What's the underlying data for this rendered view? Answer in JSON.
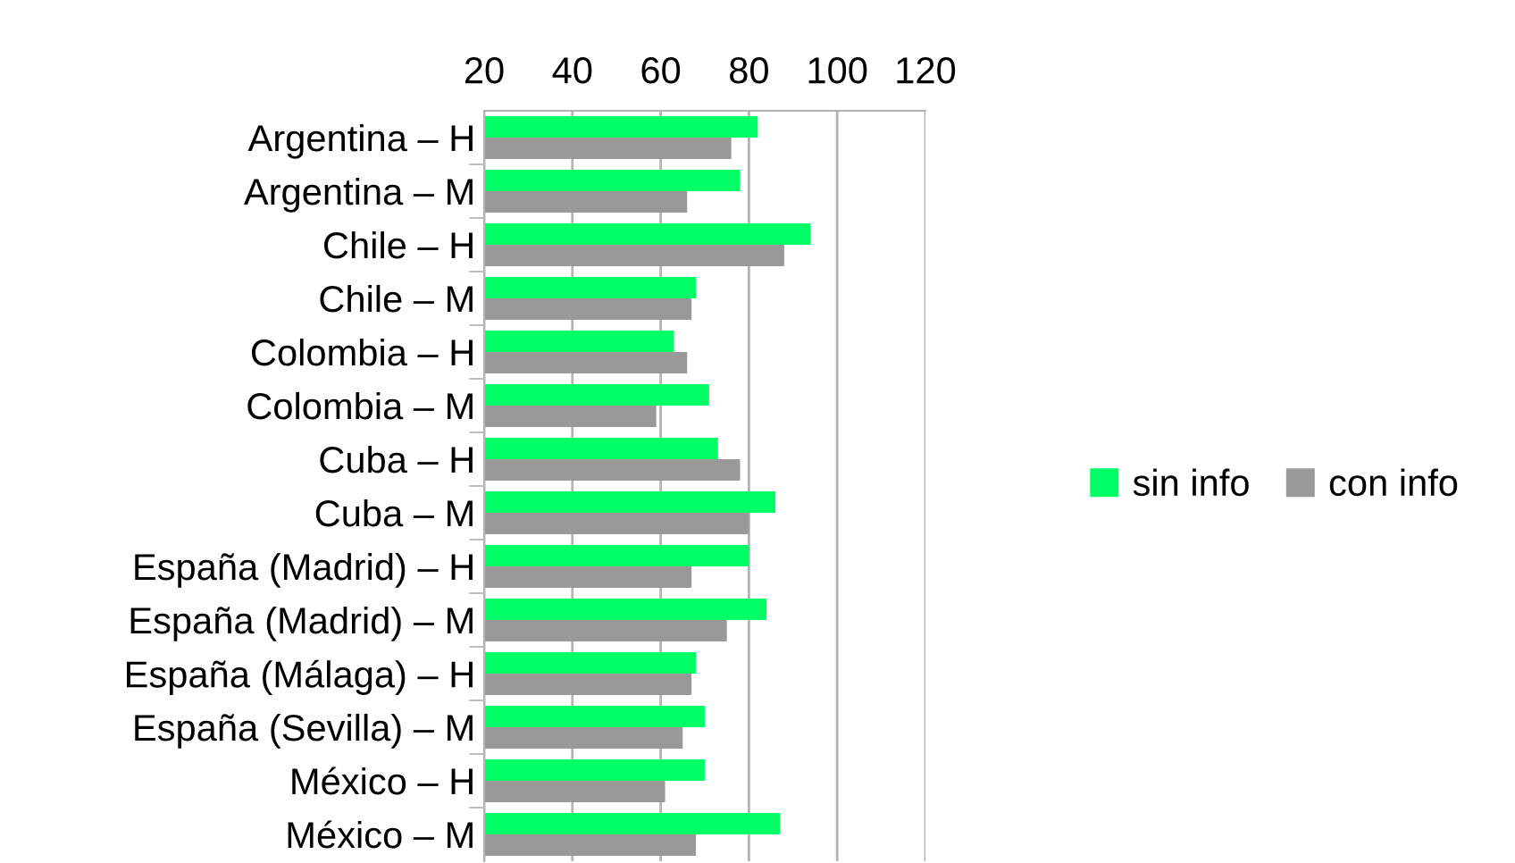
{
  "chart_data": {
    "type": "bar",
    "orientation": "horizontal",
    "categories": [
      "Argentina – H",
      "Argentina – M",
      "Chile – H",
      "Chile – M",
      "Colombia – H",
      "Colombia – M",
      "Cuba – H",
      "Cuba – M",
      "España (Madrid) – H",
      "España (Madrid) – M",
      "España (Málaga) – H",
      "España (Sevilla) – M",
      "México – H",
      "México – M"
    ],
    "series": [
      {
        "name": "sin info",
        "color": "#00ff66",
        "values": [
          82,
          78,
          94,
          68,
          63,
          71,
          73,
          86,
          80,
          84,
          68,
          70,
          70,
          87
        ]
      },
      {
        "name": "con info",
        "color": "#999999",
        "values": [
          76,
          66,
          88,
          67,
          66,
          59,
          78,
          80,
          67,
          75,
          67,
          65,
          61,
          68
        ]
      }
    ],
    "xlim": [
      20,
      120
    ],
    "xticks": [
      20,
      40,
      60,
      80,
      100,
      120
    ],
    "grid": "x",
    "legend": "right"
  }
}
